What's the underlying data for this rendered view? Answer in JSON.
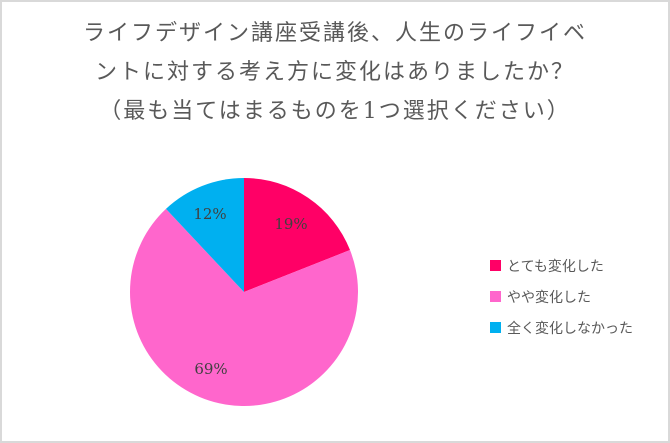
{
  "chart_data": {
    "type": "pie",
    "title": "ライフデザイン講座受講後、人生のライフイベントに対する考え方に変化はありましたか？（最も当てはまるものを1つ選択ください）",
    "title_lines": [
      "ライフデザイン講座受講後、人生のライフイベ",
      "ントに対する考え方に変化はありましたか？",
      "（最も当てはまるものを1つ選択ください）"
    ],
    "categories": [
      "とても変化した",
      "やや変化した",
      "全く変化しなかった"
    ],
    "values": [
      19,
      69,
      12
    ],
    "labels": [
      "19%",
      "69%",
      "12%"
    ],
    "colors": [
      "#ff0066",
      "#ff66cc",
      "#00b0f0"
    ],
    "legend_position": "right"
  }
}
